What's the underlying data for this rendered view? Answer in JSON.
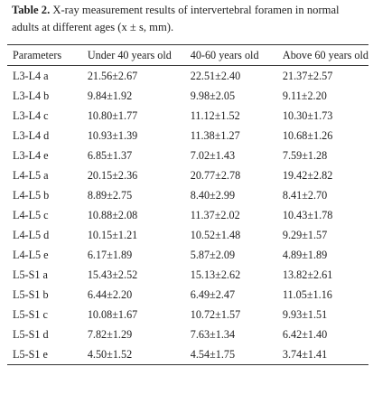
{
  "caption": {
    "label": "Table 2.",
    "text": " X-ray measurement results of intervertebral foramen in normal adults at different ages (x ± s, mm)."
  },
  "table": {
    "headers": [
      "Parameters",
      "Under 40 years old",
      "40-60 years old",
      "Above 60 years old"
    ],
    "rows": [
      [
        "L3-L4 a",
        "21.56±2.67",
        "22.51±2.40",
        "21.37±2.57"
      ],
      [
        "L3-L4 b",
        "9.84±1.92",
        "9.98±2.05",
        "9.11±2.20"
      ],
      [
        "L3-L4 c",
        "10.80±1.77",
        "11.12±1.52",
        "10.30±1.73"
      ],
      [
        "L3-L4 d",
        "10.93±1.39",
        "11.38±1.27",
        "10.68±1.26"
      ],
      [
        "L3-L4 e",
        "6.85±1.37",
        "7.02±1.43",
        "7.59±1.28"
      ],
      [
        "L4-L5 a",
        "20.15±2.36",
        "20.77±2.78",
        "19.42±2.82"
      ],
      [
        "L4-L5 b",
        "8.89±2.75",
        "8.40±2.99",
        "8.41±2.70"
      ],
      [
        "L4-L5 c",
        "10.88±2.08",
        "11.37±2.02",
        "10.43±1.78"
      ],
      [
        "L4-L5 d",
        "10.15±1.21",
        "10.52±1.48",
        "9.29±1.57"
      ],
      [
        "L4-L5 e",
        "6.17±1.89",
        "5.87±2.09",
        "4.89±1.89"
      ],
      [
        "L5-S1 a",
        "15.43±2.52",
        "15.13±2.62",
        "13.82±2.61"
      ],
      [
        "L5-S1 b",
        "6.44±2.20",
        "6.49±2.47",
        "11.05±1.16"
      ],
      [
        "L5-S1 c",
        "10.08±1.67",
        "10.72±1.57",
        "9.93±1.51"
      ],
      [
        "L5-S1 d",
        "7.82±1.29",
        "7.63±1.34",
        "6.42±1.40"
      ],
      [
        "L5-S1 e",
        "4.50±1.52",
        "4.54±1.75",
        "3.74±1.41"
      ]
    ]
  }
}
